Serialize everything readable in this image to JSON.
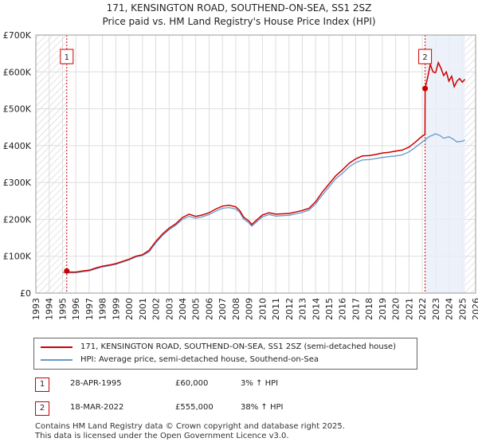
{
  "title_line1": "171, KENSINGTON ROAD, SOUTHEND-ON-SEA, SS1 2SZ",
  "title_line2": "Price paid vs. HM Land Registry's House Price Index (HPI)",
  "colors": {
    "property": "#cc0000",
    "hpi": "#6699cc",
    "grid": "#dddddd",
    "shade": "#e8eef8"
  },
  "chart_data": {
    "type": "line",
    "title": "Price paid vs. HM Land Registry's House Price Index (HPI)",
    "xlabel": "",
    "ylabel": "",
    "xlim": [
      1993,
      2026
    ],
    "ylim": [
      0,
      700000
    ],
    "y_ticks": [
      0,
      100000,
      200000,
      300000,
      400000,
      500000,
      600000,
      700000
    ],
    "y_tick_labels": [
      "£0",
      "£100K",
      "£200K",
      "£300K",
      "£400K",
      "£500K",
      "£600K",
      "£700K"
    ],
    "x_ticks": [
      1993,
      1994,
      1995,
      1996,
      1997,
      1998,
      1999,
      2000,
      2001,
      2002,
      2003,
      2004,
      2005,
      2006,
      2007,
      2008,
      2009,
      2010,
      2011,
      2012,
      2013,
      2014,
      2015,
      2016,
      2017,
      2018,
      2019,
      2020,
      2021,
      2022,
      2023,
      2024,
      2025,
      2026
    ],
    "x_tick_labels": [
      "1993",
      "1994",
      "1995",
      "1996",
      "1997",
      "1998",
      "1999",
      "2000",
      "2001",
      "2002",
      "2003",
      "2004",
      "2005",
      "2006",
      "2007",
      "2008",
      "2009",
      "2010",
      "2011",
      "2012",
      "2013",
      "2014",
      "2015",
      "2016",
      "2017",
      "2018",
      "2019",
      "2020",
      "2021",
      "2022",
      "2023",
      "2024",
      "2025",
      "2026"
    ],
    "hatched_ranges": [
      [
        1993,
        1995.32
      ],
      [
        2025.2,
        2026
      ]
    ],
    "series": [
      {
        "name": "171, KENSINGTON ROAD, SOUTHEND-ON-SEA, SS1 2SZ (semi-detached house)",
        "x": [
          1995.32,
          1995.5,
          1996,
          1996.5,
          1997,
          1997.5,
          1998,
          1998.5,
          1999,
          1999.5,
          2000,
          2000.5,
          2001,
          2001.5,
          2002,
          2002.5,
          2003,
          2003.5,
          2004,
          2004.5,
          2005,
          2005.5,
          2006,
          2006.5,
          2007,
          2007.5,
          2008,
          2008.3,
          2008.6,
          2009,
          2009.2,
          2009.5,
          2010,
          2010.5,
          2011,
          2011.5,
          2012,
          2012.5,
          2013,
          2013.5,
          2014,
          2014.5,
          2015,
          2015.5,
          2016,
          2016.5,
          2017,
          2017.5,
          2018,
          2018.5,
          2019,
          2019.5,
          2020,
          2020.5,
          2021,
          2021.5,
          2022.0,
          2022.2,
          2022.21,
          2022.4,
          2022.6,
          2022.8,
          2023,
          2023.2,
          2023.4,
          2023.6,
          2023.8,
          2024,
          2024.2,
          2024.4,
          2024.6,
          2024.8,
          2025,
          2025.2
        ],
        "y": [
          60000,
          57000,
          57000,
          60000,
          62000,
          68000,
          73000,
          76000,
          80000,
          86000,
          92000,
          100000,
          104000,
          116000,
          140000,
          160000,
          176000,
          188000,
          205000,
          214000,
          208000,
          212000,
          218000,
          228000,
          236000,
          238000,
          234000,
          224000,
          206000,
          195000,
          186000,
          196000,
          212000,
          218000,
          214000,
          215000,
          216000,
          220000,
          224000,
          230000,
          248000,
          274000,
          296000,
          318000,
          334000,
          352000,
          364000,
          372000,
          373000,
          376000,
          380000,
          382000,
          385000,
          388000,
          396000,
          410000,
          426000,
          430000,
          555000,
          585000,
          620000,
          600000,
          598000,
          625000,
          610000,
          590000,
          600000,
          575000,
          588000,
          560000,
          575000,
          582000,
          572000,
          580000
        ]
      },
      {
        "name": "HPI: Average price, semi-detached house, Southend-on-Sea",
        "x": [
          1995,
          1995.5,
          1996,
          1996.5,
          1997,
          1997.5,
          1998,
          1998.5,
          1999,
          1999.5,
          2000,
          2000.5,
          2001,
          2001.5,
          2002,
          2002.5,
          2003,
          2003.5,
          2004,
          2004.5,
          2005,
          2005.5,
          2006,
          2006.5,
          2007,
          2007.5,
          2008,
          2008.3,
          2008.6,
          2009,
          2009.2,
          2009.5,
          2010,
          2010.5,
          2011,
          2011.5,
          2012,
          2012.5,
          2013,
          2013.5,
          2014,
          2014.5,
          2015,
          2015.5,
          2016,
          2016.5,
          2017,
          2017.5,
          2018,
          2018.5,
          2019,
          2019.5,
          2020,
          2020.5,
          2021,
          2021.5,
          2022,
          2022.5,
          2023,
          2023.3,
          2023.6,
          2024,
          2024.3,
          2024.6,
          2025,
          2025.2
        ],
        "y": [
          56000,
          55000,
          55000,
          58000,
          60000,
          66000,
          71000,
          74000,
          78000,
          84000,
          90000,
          98000,
          102000,
          112000,
          136000,
          156000,
          172000,
          184000,
          200000,
          208000,
          203000,
          207000,
          213000,
          222000,
          230000,
          232000,
          228000,
          219000,
          201000,
          190000,
          182000,
          191000,
          207000,
          213000,
          209000,
          210000,
          211000,
          215000,
          219000,
          225000,
          242000,
          266000,
          288000,
          310000,
          325000,
          342000,
          354000,
          361000,
          362000,
          365000,
          368000,
          370000,
          372000,
          375000,
          383000,
          396000,
          410000,
          424000,
          432000,
          428000,
          420000,
          424000,
          418000,
          410000,
          412000,
          415000
        ]
      }
    ],
    "sales": [
      {
        "label": "1",
        "x": 1995.32,
        "y": 60000
      },
      {
        "label": "2",
        "x": 2022.21,
        "y": 555000
      }
    ]
  },
  "legend": {
    "property_label": "171, KENSINGTON ROAD, SOUTHEND-ON-SEA, SS1 2SZ (semi-detached house)",
    "hpi_label": "HPI: Average price, semi-detached house, Southend-on-Sea"
  },
  "sales_table": [
    {
      "num": "1",
      "date": "28-APR-1995",
      "price": "£60,000",
      "hpi": "3% ↑ HPI"
    },
    {
      "num": "2",
      "date": "18-MAR-2022",
      "price": "£555,000",
      "hpi": "38% ↑ HPI"
    }
  ],
  "footer": {
    "line1": "Contains HM Land Registry data © Crown copyright and database right 2025.",
    "line2": "This data is licensed under the Open Government Licence v3.0."
  }
}
